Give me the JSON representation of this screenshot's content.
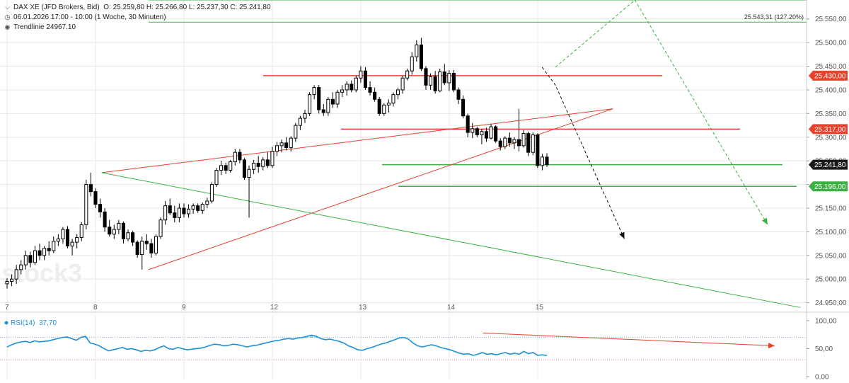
{
  "header": {
    "instrument": "DAX XE (JFD Brokers, Bid)",
    "ohlc": "O: 25.259,80  H: 25.266,80  L: 25.237,30  C: 25.241,80",
    "range": "06.01.2026 17:00 - 10:00  (1 Woche, 30 Minuten)",
    "indicator": "Trendlinie  24967.10",
    "watermark": "stock3"
  },
  "colors": {
    "candle_up": "#ffffff",
    "candle_down": "#000000",
    "candle_edge": "#000000",
    "resistance": "#e8412c",
    "support": "#3cb043",
    "fib": "#3cb043",
    "rsi_line": "#1e90d6",
    "rsi_fill": "#5cbfa6",
    "grid": "#e8e8e8",
    "price_tag": "#1a1a1a"
  },
  "chart_data": [
    {
      "type": "candlestick",
      "x_labels": [
        "7",
        "8",
        "9",
        "12",
        "13",
        "14",
        "15"
      ],
      "ylim": [
        24930,
        25590
      ],
      "y_ticks": [
        "25.550,00",
        "25.500,00",
        "25.450,00",
        "25.400,00",
        "25.350,00",
        "25.300,00",
        "25.250,00",
        "25.200,00",
        "25.150,00",
        "25.100,00",
        "25.050,00",
        "25.000,00",
        "24.950,00"
      ],
      "price_tags": [
        {
          "label": "25.430,00",
          "style": "red"
        },
        {
          "label": "25.317,00",
          "style": "red"
        },
        {
          "label": "25.241,80",
          "style": "dark"
        },
        {
          "label": "25.196,00",
          "style": "green"
        }
      ],
      "levels": [
        {
          "value": 25430,
          "color": "red"
        },
        {
          "value": 25317,
          "color": "red"
        },
        {
          "value": 25241.8,
          "color": "green"
        },
        {
          "value": 25196,
          "color": "green"
        }
      ],
      "fib_levels": [
        {
          "value": 25590,
          "label": ""
        },
        {
          "value": 25543.31,
          "label": "25.543,31 (127.20%)"
        }
      ],
      "trendlines": [
        {
          "color": "red",
          "points": [
            [
              8.07,
              25225
            ],
            [
              13.85,
              25360
            ]
          ]
        },
        {
          "color": "red",
          "points": [
            [
              8.6,
              25020
            ],
            [
              13.85,
              25360
            ]
          ]
        },
        {
          "color": "green",
          "points": [
            [
              8.07,
              25225
            ],
            [
              15.97,
              24940
            ]
          ]
        }
      ],
      "arrows": [
        {
          "color": "black",
          "dash": true,
          "points": [
            [
              13.05,
              25448
            ],
            [
              13.2,
              25410
            ],
            [
              13.98,
              25085
            ]
          ]
        },
        {
          "color": "green",
          "dash": true,
          "points": [
            [
              13.2,
              25448
            ],
            [
              14.1,
              25590
            ],
            [
              15.6,
              25115
            ]
          ]
        }
      ],
      "candles": [
        {
          "o": 24990,
          "h": 25002,
          "l": 24980,
          "c": 24995
        },
        {
          "o": 24995,
          "h": 25010,
          "l": 24985,
          "c": 25000
        },
        {
          "o": 25000,
          "h": 25030,
          "l": 24990,
          "c": 25020
        },
        {
          "o": 25020,
          "h": 25040,
          "l": 25010,
          "c": 25030
        },
        {
          "o": 25030,
          "h": 25060,
          "l": 25020,
          "c": 25050
        },
        {
          "o": 25050,
          "h": 25058,
          "l": 25025,
          "c": 25035
        },
        {
          "o": 25035,
          "h": 25070,
          "l": 25030,
          "c": 25060
        },
        {
          "o": 25060,
          "h": 25075,
          "l": 25040,
          "c": 25050
        },
        {
          "o": 25050,
          "h": 25070,
          "l": 25040,
          "c": 25065
        },
        {
          "o": 25065,
          "h": 25080,
          "l": 25050,
          "c": 25060
        },
        {
          "o": 25060,
          "h": 25090,
          "l": 25055,
          "c": 25080
        },
        {
          "o": 25080,
          "h": 25095,
          "l": 25070,
          "c": 25085
        },
        {
          "o": 25085,
          "h": 25110,
          "l": 25075,
          "c": 25105
        },
        {
          "o": 25105,
          "h": 25112,
          "l": 25065,
          "c": 25070
        },
        {
          "o": 25070,
          "h": 25085,
          "l": 25050,
          "c": 25078
        },
        {
          "o": 25078,
          "h": 25095,
          "l": 25065,
          "c": 25088
        },
        {
          "o": 25088,
          "h": 25120,
          "l": 25080,
          "c": 25115
        },
        {
          "o": 25115,
          "h": 25210,
          "l": 25105,
          "c": 25200
        },
        {
          "o": 25200,
          "h": 25225,
          "l": 25175,
          "c": 25185
        },
        {
          "o": 25185,
          "h": 25192,
          "l": 25150,
          "c": 25158
        },
        {
          "o": 25158,
          "h": 25170,
          "l": 25130,
          "c": 25142
        },
        {
          "o": 25142,
          "h": 25150,
          "l": 25100,
          "c": 25110
        },
        {
          "o": 25110,
          "h": 25125,
          "l": 25090,
          "c": 25095
        },
        {
          "o": 25095,
          "h": 25115,
          "l": 25085,
          "c": 25105
        },
        {
          "o": 25105,
          "h": 25125,
          "l": 25095,
          "c": 25118
        },
        {
          "o": 25118,
          "h": 25122,
          "l": 25075,
          "c": 25085
        },
        {
          "o": 25085,
          "h": 25105,
          "l": 25080,
          "c": 25098
        },
        {
          "o": 25098,
          "h": 25102,
          "l": 25070,
          "c": 25078
        },
        {
          "o": 25078,
          "h": 25082,
          "l": 25045,
          "c": 25052
        },
        {
          "o": 25052,
          "h": 25090,
          "l": 25020,
          "c": 25080
        },
        {
          "o": 25080,
          "h": 25095,
          "l": 25062,
          "c": 25075
        },
        {
          "o": 25075,
          "h": 25085,
          "l": 25045,
          "c": 25055
        },
        {
          "o": 25055,
          "h": 25095,
          "l": 25050,
          "c": 25090
        },
        {
          "o": 25090,
          "h": 25130,
          "l": 25085,
          "c": 25125
        },
        {
          "o": 25125,
          "h": 25165,
          "l": 25115,
          "c": 25155
        },
        {
          "o": 25155,
          "h": 25170,
          "l": 25135,
          "c": 25140
        },
        {
          "o": 25140,
          "h": 25155,
          "l": 25120,
          "c": 25130
        },
        {
          "o": 25130,
          "h": 25160,
          "l": 25120,
          "c": 25150
        },
        {
          "o": 25150,
          "h": 25160,
          "l": 25130,
          "c": 25138
        },
        {
          "o": 25138,
          "h": 25158,
          "l": 25130,
          "c": 25148
        },
        {
          "o": 25148,
          "h": 25160,
          "l": 25138,
          "c": 25155
        },
        {
          "o": 25155,
          "h": 25160,
          "l": 25140,
          "c": 25145
        },
        {
          "o": 25145,
          "h": 25162,
          "l": 25138,
          "c": 25158
        },
        {
          "o": 25158,
          "h": 25172,
          "l": 25150,
          "c": 25165
        },
        {
          "o": 25165,
          "h": 25205,
          "l": 25160,
          "c": 25200
        },
        {
          "o": 25200,
          "h": 25235,
          "l": 25195,
          "c": 25230
        },
        {
          "o": 25230,
          "h": 25250,
          "l": 25220,
          "c": 25240
        },
        {
          "o": 25240,
          "h": 25246,
          "l": 25222,
          "c": 25230
        },
        {
          "o": 25230,
          "h": 25252,
          "l": 25225,
          "c": 25248
        },
        {
          "o": 25248,
          "h": 25275,
          "l": 25240,
          "c": 25268
        },
        {
          "o": 25268,
          "h": 25275,
          "l": 25245,
          "c": 25252
        },
        {
          "o": 25252,
          "h": 25256,
          "l": 25210,
          "c": 25215
        },
        {
          "o": 25215,
          "h": 25240,
          "l": 25130,
          "c": 25232
        },
        {
          "o": 25232,
          "h": 25252,
          "l": 25222,
          "c": 25245
        },
        {
          "o": 25245,
          "h": 25260,
          "l": 25225,
          "c": 25238
        },
        {
          "o": 25238,
          "h": 25258,
          "l": 25230,
          "c": 25252
        },
        {
          "o": 25252,
          "h": 25268,
          "l": 25235,
          "c": 25240
        },
        {
          "o": 25240,
          "h": 25280,
          "l": 25235,
          "c": 25270
        },
        {
          "o": 25270,
          "h": 25290,
          "l": 25260,
          "c": 25282
        },
        {
          "o": 25282,
          "h": 25295,
          "l": 25268,
          "c": 25288
        },
        {
          "o": 25288,
          "h": 25300,
          "l": 25272,
          "c": 25278
        },
        {
          "o": 25278,
          "h": 25302,
          "l": 25270,
          "c": 25298
        },
        {
          "o": 25298,
          "h": 25330,
          "l": 25290,
          "c": 25325
        },
        {
          "o": 25325,
          "h": 25345,
          "l": 25315,
          "c": 25340
        },
        {
          "o": 25340,
          "h": 25358,
          "l": 25330,
          "c": 25350
        },
        {
          "o": 25350,
          "h": 25395,
          "l": 25345,
          "c": 25390
        },
        {
          "o": 25390,
          "h": 25410,
          "l": 25380,
          "c": 25405
        },
        {
          "o": 25405,
          "h": 25410,
          "l": 25350,
          "c": 25358
        },
        {
          "o": 25358,
          "h": 25370,
          "l": 25345,
          "c": 25352
        },
        {
          "o": 25352,
          "h": 25385,
          "l": 25345,
          "c": 25380
        },
        {
          "o": 25380,
          "h": 25395,
          "l": 25362,
          "c": 25370
        },
        {
          "o": 25370,
          "h": 25400,
          "l": 25362,
          "c": 25395
        },
        {
          "o": 25395,
          "h": 25410,
          "l": 25385,
          "c": 25400
        },
        {
          "o": 25400,
          "h": 25418,
          "l": 25388,
          "c": 25412
        },
        {
          "o": 25412,
          "h": 25420,
          "l": 25395,
          "c": 25400
        },
        {
          "o": 25400,
          "h": 25430,
          "l": 25395,
          "c": 25425
        },
        {
          "o": 25425,
          "h": 25450,
          "l": 25415,
          "c": 25440
        },
        {
          "o": 25440,
          "h": 25448,
          "l": 25400,
          "c": 25405
        },
        {
          "o": 25405,
          "h": 25418,
          "l": 25388,
          "c": 25395
        },
        {
          "o": 25395,
          "h": 25405,
          "l": 25375,
          "c": 25380
        },
        {
          "o": 25380,
          "h": 25385,
          "l": 25345,
          "c": 25350
        },
        {
          "o": 25350,
          "h": 25372,
          "l": 25345,
          "c": 25368
        },
        {
          "o": 25368,
          "h": 25380,
          "l": 25352,
          "c": 25372
        },
        {
          "o": 25372,
          "h": 25395,
          "l": 25365,
          "c": 25390
        },
        {
          "o": 25390,
          "h": 25405,
          "l": 25380,
          "c": 25400
        },
        {
          "o": 25400,
          "h": 25430,
          "l": 25392,
          "c": 25425
        },
        {
          "o": 25425,
          "h": 25445,
          "l": 25420,
          "c": 25440
        },
        {
          "o": 25440,
          "h": 25480,
          "l": 25432,
          "c": 25470
        },
        {
          "o": 25470,
          "h": 25505,
          "l": 25460,
          "c": 25495
        },
        {
          "o": 25495,
          "h": 25510,
          "l": 25440,
          "c": 25445
        },
        {
          "o": 25445,
          "h": 25450,
          "l": 25400,
          "c": 25410
        },
        {
          "o": 25410,
          "h": 25435,
          "l": 25400,
          "c": 25428
        },
        {
          "o": 25428,
          "h": 25440,
          "l": 25392,
          "c": 25398
        },
        {
          "o": 25398,
          "h": 25445,
          "l": 25395,
          "c": 25438
        },
        {
          "o": 25438,
          "h": 25455,
          "l": 25410,
          "c": 25415
        },
        {
          "o": 25415,
          "h": 25442,
          "l": 25398,
          "c": 25435
        },
        {
          "o": 25435,
          "h": 25442,
          "l": 25395,
          "c": 25400
        },
        {
          "o": 25400,
          "h": 25405,
          "l": 25370,
          "c": 25380
        },
        {
          "o": 25380,
          "h": 25388,
          "l": 25340,
          "c": 25345
        },
        {
          "o": 25345,
          "h": 25350,
          "l": 25300,
          "c": 25310
        },
        {
          "o": 25310,
          "h": 25330,
          "l": 25298,
          "c": 25318
        },
        {
          "o": 25318,
          "h": 25322,
          "l": 25300,
          "c": 25305
        },
        {
          "o": 25305,
          "h": 25318,
          "l": 25285,
          "c": 25312
        },
        {
          "o": 25312,
          "h": 25320,
          "l": 25290,
          "c": 25298
        },
        {
          "o": 25298,
          "h": 25328,
          "l": 25295,
          "c": 25322
        },
        {
          "o": 25322,
          "h": 25325,
          "l": 25288,
          "c": 25292
        },
        {
          "o": 25292,
          "h": 25298,
          "l": 25272,
          "c": 25280
        },
        {
          "o": 25280,
          "h": 25302,
          "l": 25275,
          "c": 25298
        },
        {
          "o": 25298,
          "h": 25310,
          "l": 25280,
          "c": 25288
        },
        {
          "o": 25288,
          "h": 25300,
          "l": 25275,
          "c": 25295
        },
        {
          "o": 25295,
          "h": 25360,
          "l": 25270,
          "c": 25282
        },
        {
          "o": 25282,
          "h": 25315,
          "l": 25278,
          "c": 25308
        },
        {
          "o": 25308,
          "h": 25312,
          "l": 25260,
          "c": 25268
        },
        {
          "o": 25268,
          "h": 25310,
          "l": 25262,
          "c": 25305
        },
        {
          "o": 25305,
          "h": 25308,
          "l": 25235,
          "c": 25240
        },
        {
          "o": 25240,
          "h": 25265,
          "l": 25230,
          "c": 25258
        },
        {
          "o": 25258,
          "h": 25266,
          "l": 25237,
          "c": 25241.8
        }
      ]
    },
    {
      "type": "line",
      "title": "RSI(14)",
      "value": "37,70",
      "ylim": [
        -5,
        110
      ],
      "y_ticks": [
        "100,00",
        "50,00",
        "0,00"
      ],
      "ref_levels": [
        70,
        30
      ],
      "trendline": {
        "color": "red",
        "points": [
          [
            12.38,
            78
          ],
          [
            15.68,
            55
          ]
        ]
      },
      "values": [
        53,
        57,
        60,
        62,
        63,
        61,
        64,
        62,
        63,
        64,
        66,
        68,
        70,
        71,
        68,
        65,
        70,
        72,
        60,
        58,
        55,
        50,
        46,
        48,
        50,
        52,
        49,
        50,
        48,
        45,
        47,
        46,
        48,
        52,
        55,
        50,
        49,
        52,
        50,
        48,
        49,
        50,
        51,
        53,
        56,
        58,
        57,
        55,
        56,
        58,
        57,
        55,
        53,
        55,
        56,
        58,
        60,
        62,
        64,
        65,
        67,
        68,
        67,
        69,
        70,
        72,
        74,
        72,
        68,
        66,
        67,
        65,
        63,
        60,
        55,
        52,
        48,
        47,
        50,
        52,
        55,
        58,
        60,
        63,
        66,
        69,
        70,
        67,
        60,
        55,
        53,
        55,
        57,
        55,
        52,
        50,
        48,
        45,
        42,
        40,
        41,
        38,
        40,
        43,
        40,
        41,
        39,
        41,
        43,
        40,
        42,
        40,
        45,
        41,
        43,
        38,
        39,
        37.7
      ]
    }
  ]
}
